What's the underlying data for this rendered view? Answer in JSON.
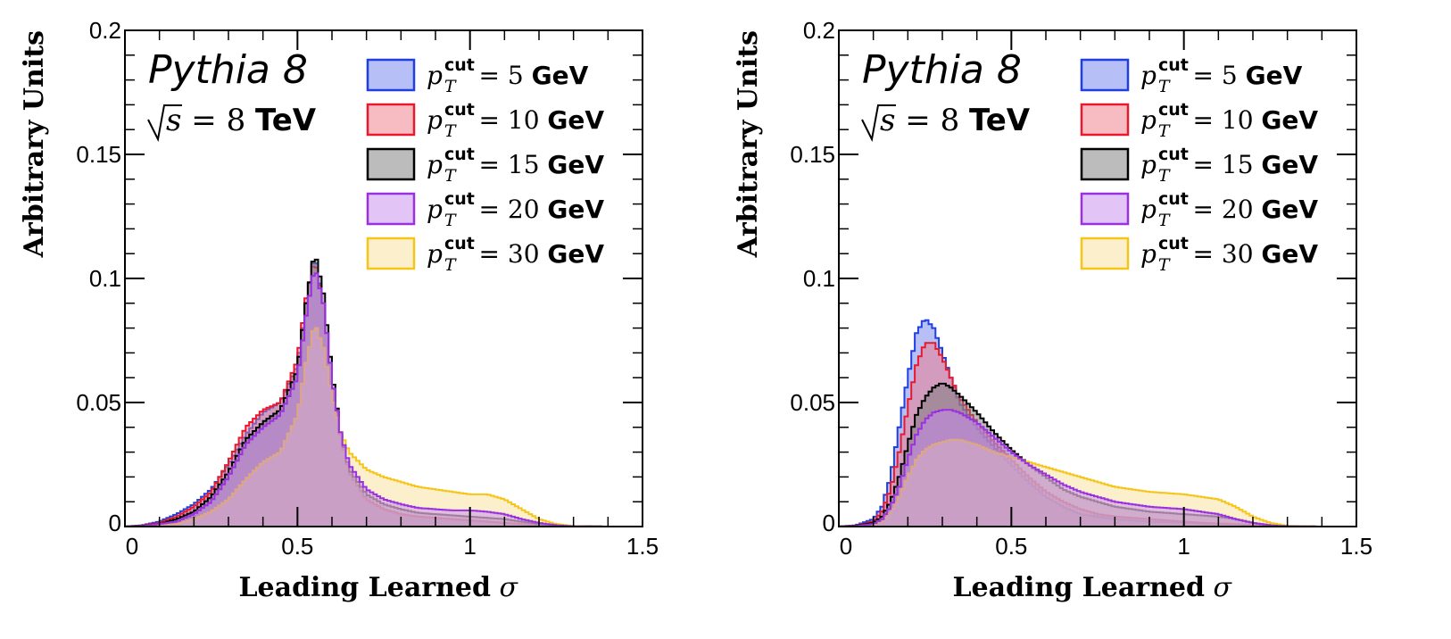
{
  "chart_data": [
    {
      "type": "area",
      "title": "",
      "xlabel": "Leading Learned",
      "xlabel_symbol": "σ",
      "ylabel": "Arbitrary Units",
      "xlim": [
        0,
        1.5
      ],
      "ylim": [
        0,
        0.2
      ],
      "xticks": [
        "0",
        "0.5",
        "1",
        "1.5"
      ],
      "yticks": [
        "0",
        "0.05",
        "0.1",
        "0.15",
        "0.2"
      ],
      "grid": false,
      "legend_placement": "top-right",
      "annotation": {
        "generator": "Pythia 8",
        "energy_value": "8",
        "energy_unit": "TeV"
      },
      "series": [
        {
          "name": "p_T^cut = 5 GeV",
          "label_value": "5",
          "label_unit": "GeV",
          "edge": "#1f3fe0",
          "fill": "#6f7ff0",
          "x": [
            0.05,
            0.1,
            0.15,
            0.2,
            0.25,
            0.3,
            0.35,
            0.4,
            0.45,
            0.5,
            0.525,
            0.55,
            0.575,
            0.6,
            0.625,
            0.65,
            0.7,
            0.75,
            0.8,
            0.85,
            0.9,
            0.95,
            1.0,
            1.05,
            1.1,
            1.15,
            1.2,
            1.25,
            1.3
          ],
          "y": [
            0.0005,
            0.002,
            0.005,
            0.009,
            0.015,
            0.025,
            0.037,
            0.046,
            0.05,
            0.065,
            0.09,
            0.11,
            0.09,
            0.06,
            0.037,
            0.022,
            0.011,
            0.007,
            0.005,
            0.004,
            0.0035,
            0.003,
            0.0025,
            0.002,
            0.0015,
            0.001,
            0.0005,
            0.0002,
            0.0001
          ]
        },
        {
          "name": "p_T^cut = 10 GeV",
          "label_value": "10",
          "label_unit": "GeV",
          "edge": "#e8192c",
          "fill": "#f07a86",
          "x": [
            0.05,
            0.1,
            0.15,
            0.2,
            0.25,
            0.3,
            0.35,
            0.4,
            0.45,
            0.5,
            0.525,
            0.55,
            0.575,
            0.6,
            0.625,
            0.65,
            0.7,
            0.75,
            0.8,
            0.85,
            0.9,
            0.95,
            1.0,
            1.05,
            1.1,
            1.15,
            1.2,
            1.25,
            1.3
          ],
          "y": [
            0.0004,
            0.0015,
            0.004,
            0.008,
            0.014,
            0.026,
            0.04,
            0.047,
            0.05,
            0.067,
            0.092,
            0.108,
            0.09,
            0.06,
            0.037,
            0.022,
            0.011,
            0.007,
            0.005,
            0.004,
            0.0035,
            0.003,
            0.0025,
            0.002,
            0.0015,
            0.001,
            0.0005,
            0.0002,
            0.0001
          ]
        },
        {
          "name": "p_T^cut = 15 GeV",
          "label_value": "15",
          "label_unit": "GeV",
          "edge": "#000000",
          "fill": "#7a7a7a",
          "x": [
            0.05,
            0.1,
            0.15,
            0.2,
            0.25,
            0.3,
            0.35,
            0.4,
            0.45,
            0.5,
            0.525,
            0.55,
            0.575,
            0.6,
            0.625,
            0.65,
            0.7,
            0.75,
            0.8,
            0.85,
            0.9,
            0.95,
            1.0,
            1.05,
            1.1,
            1.15,
            1.2,
            1.25,
            1.3
          ],
          "y": [
            0.0003,
            0.001,
            0.003,
            0.006,
            0.012,
            0.022,
            0.035,
            0.042,
            0.047,
            0.063,
            0.09,
            0.111,
            0.094,
            0.062,
            0.038,
            0.023,
            0.013,
            0.009,
            0.007,
            0.0055,
            0.005,
            0.0045,
            0.004,
            0.0035,
            0.003,
            0.002,
            0.001,
            0.0004,
            0.0001
          ]
        },
        {
          "name": "p_T^cut = 20 GeV",
          "label_value": "20",
          "label_unit": "GeV",
          "edge": "#9b30e0",
          "fill": "#c58af0",
          "x": [
            0.05,
            0.1,
            0.15,
            0.2,
            0.25,
            0.3,
            0.35,
            0.4,
            0.45,
            0.5,
            0.525,
            0.55,
            0.575,
            0.6,
            0.625,
            0.65,
            0.7,
            0.75,
            0.8,
            0.85,
            0.9,
            0.95,
            1.0,
            1.05,
            1.1,
            1.15,
            1.2,
            1.25,
            1.3
          ],
          "y": [
            0.0002,
            0.001,
            0.002,
            0.005,
            0.01,
            0.02,
            0.033,
            0.04,
            0.045,
            0.06,
            0.085,
            0.105,
            0.09,
            0.06,
            0.038,
            0.025,
            0.015,
            0.011,
            0.009,
            0.0075,
            0.007,
            0.0065,
            0.0065,
            0.006,
            0.005,
            0.003,
            0.0015,
            0.0005,
            0.0001
          ]
        },
        {
          "name": "p_T^cut = 30 GeV",
          "label_value": "30",
          "label_unit": "GeV",
          "edge": "#f5c518",
          "fill": "#f7e09a",
          "x": [
            0.05,
            0.1,
            0.15,
            0.2,
            0.25,
            0.3,
            0.35,
            0.4,
            0.45,
            0.5,
            0.525,
            0.55,
            0.575,
            0.6,
            0.625,
            0.65,
            0.7,
            0.75,
            0.8,
            0.85,
            0.9,
            0.95,
            1.0,
            1.05,
            1.1,
            1.15,
            1.2,
            1.25,
            1.3
          ],
          "y": [
            0.0001,
            0.0005,
            0.001,
            0.003,
            0.006,
            0.011,
            0.019,
            0.026,
            0.03,
            0.045,
            0.066,
            0.082,
            0.072,
            0.053,
            0.038,
            0.03,
            0.023,
            0.02,
            0.018,
            0.016,
            0.015,
            0.014,
            0.013,
            0.013,
            0.011,
            0.007,
            0.003,
            0.001,
            0.0002
          ]
        }
      ]
    },
    {
      "type": "area",
      "title": "",
      "xlabel": "Leading Learned",
      "xlabel_symbol": "σ",
      "ylabel": "Arbitrary Units",
      "xlim": [
        0,
        1.5
      ],
      "ylim": [
        0,
        0.2
      ],
      "xticks": [
        "0",
        "0.5",
        "1",
        "1.5"
      ],
      "yticks": [
        "0",
        "0.05",
        "0.1",
        "0.15",
        "0.2"
      ],
      "grid": false,
      "legend_placement": "top-right",
      "annotation": {
        "generator": "Pythia 8",
        "energy_value": "8",
        "energy_unit": "TeV"
      },
      "series": [
        {
          "name": "p_T^cut = 5 GeV",
          "label_value": "5",
          "label_unit": "GeV",
          "edge": "#1f3fe0",
          "fill": "#6f7ff0",
          "x": [
            0.05,
            0.1,
            0.125,
            0.15,
            0.175,
            0.2,
            0.225,
            0.25,
            0.275,
            0.3,
            0.325,
            0.35,
            0.4,
            0.45,
            0.5,
            0.55,
            0.6,
            0.65,
            0.7,
            0.75,
            0.8,
            0.85,
            0.9,
            0.95,
            1.0,
            1.05,
            1.1,
            1.15,
            1.2,
            1.25,
            1.3
          ],
          "y": [
            0.0005,
            0.003,
            0.008,
            0.02,
            0.04,
            0.06,
            0.078,
            0.084,
            0.08,
            0.07,
            0.06,
            0.05,
            0.04,
            0.032,
            0.025,
            0.018,
            0.012,
            0.008,
            0.005,
            0.004,
            0.003,
            0.0025,
            0.002,
            0.0018,
            0.0015,
            0.0012,
            0.001,
            0.0008,
            0.0005,
            0.0002,
            0.0001
          ]
        },
        {
          "name": "p_T^cut = 10 GeV",
          "label_value": "10",
          "label_unit": "GeV",
          "edge": "#e8192c",
          "fill": "#f07a86",
          "x": [
            0.05,
            0.1,
            0.125,
            0.15,
            0.175,
            0.2,
            0.225,
            0.25,
            0.275,
            0.3,
            0.325,
            0.35,
            0.4,
            0.45,
            0.5,
            0.55,
            0.6,
            0.65,
            0.7,
            0.75,
            0.8,
            0.85,
            0.9,
            0.95,
            1.0,
            1.05,
            1.1,
            1.15,
            1.2,
            1.25,
            1.3
          ],
          "y": [
            0.0004,
            0.002,
            0.006,
            0.015,
            0.03,
            0.048,
            0.065,
            0.074,
            0.074,
            0.068,
            0.06,
            0.052,
            0.042,
            0.034,
            0.027,
            0.02,
            0.014,
            0.01,
            0.007,
            0.005,
            0.004,
            0.0035,
            0.003,
            0.0025,
            0.002,
            0.0015,
            0.0012,
            0.001,
            0.0006,
            0.0002,
            0.0001
          ]
        },
        {
          "name": "p_T^cut = 15 GeV",
          "label_value": "15",
          "label_unit": "GeV",
          "edge": "#000000",
          "fill": "#7a7a7a",
          "x": [
            0.05,
            0.1,
            0.125,
            0.15,
            0.175,
            0.2,
            0.225,
            0.25,
            0.275,
            0.3,
            0.325,
            0.35,
            0.4,
            0.45,
            0.5,
            0.55,
            0.6,
            0.65,
            0.7,
            0.75,
            0.8,
            0.85,
            0.9,
            0.95,
            1.0,
            1.05,
            1.1,
            1.15,
            1.2,
            1.25,
            1.3
          ],
          "y": [
            0.0003,
            0.0015,
            0.004,
            0.01,
            0.02,
            0.033,
            0.045,
            0.052,
            0.056,
            0.058,
            0.056,
            0.053,
            0.046,
            0.038,
            0.031,
            0.025,
            0.02,
            0.015,
            0.012,
            0.01,
            0.008,
            0.007,
            0.006,
            0.0055,
            0.005,
            0.0045,
            0.004,
            0.003,
            0.0015,
            0.0005,
            0.0001
          ]
        },
        {
          "name": "p_T^cut = 20 GeV",
          "label_value": "20",
          "label_unit": "GeV",
          "edge": "#9b30e0",
          "fill": "#c58af0",
          "x": [
            0.05,
            0.1,
            0.125,
            0.15,
            0.175,
            0.2,
            0.225,
            0.25,
            0.275,
            0.3,
            0.325,
            0.35,
            0.4,
            0.45,
            0.5,
            0.55,
            0.6,
            0.65,
            0.7,
            0.75,
            0.8,
            0.85,
            0.9,
            0.95,
            1.0,
            1.05,
            1.1,
            1.15,
            1.2,
            1.25,
            1.3
          ],
          "y": [
            0.0002,
            0.001,
            0.003,
            0.008,
            0.016,
            0.027,
            0.037,
            0.043,
            0.046,
            0.047,
            0.047,
            0.046,
            0.042,
            0.036,
            0.03,
            0.025,
            0.021,
            0.017,
            0.014,
            0.012,
            0.01,
            0.009,
            0.008,
            0.0075,
            0.007,
            0.006,
            0.005,
            0.003,
            0.0015,
            0.0005,
            0.0001
          ]
        },
        {
          "name": "p_T^cut = 30 GeV",
          "label_value": "30",
          "label_unit": "GeV",
          "edge": "#f5c518",
          "fill": "#f7e09a",
          "x": [
            0.05,
            0.1,
            0.125,
            0.15,
            0.175,
            0.2,
            0.225,
            0.25,
            0.275,
            0.3,
            0.325,
            0.35,
            0.4,
            0.45,
            0.5,
            0.55,
            0.6,
            0.65,
            0.7,
            0.75,
            0.8,
            0.85,
            0.9,
            0.95,
            1.0,
            1.05,
            1.1,
            1.15,
            1.2,
            1.25,
            1.3
          ],
          "y": [
            0.0001,
            0.0008,
            0.002,
            0.006,
            0.012,
            0.02,
            0.027,
            0.031,
            0.033,
            0.034,
            0.035,
            0.035,
            0.033,
            0.03,
            0.028,
            0.026,
            0.024,
            0.022,
            0.02,
            0.018,
            0.016,
            0.015,
            0.014,
            0.0135,
            0.013,
            0.012,
            0.011,
            0.008,
            0.004,
            0.0015,
            0.0003
          ]
        }
      ]
    }
  ]
}
